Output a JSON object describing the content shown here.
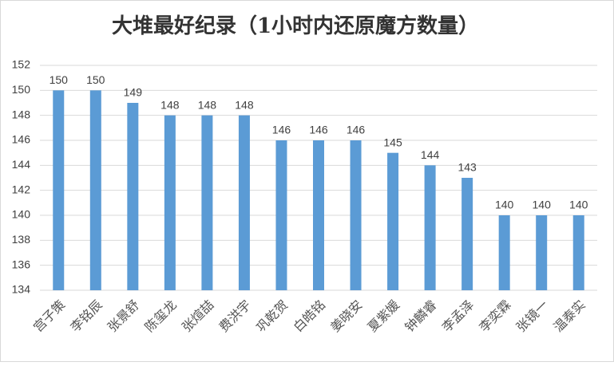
{
  "chart_data": {
    "type": "bar",
    "title": "大堆最好纪录（1小时内还原魔方数量）",
    "categories": [
      "宫子策",
      "李铭辰",
      "张景舒",
      "陈玺龙",
      "张煊喆",
      "费洪宇",
      "巩乾贺",
      "白皓铭",
      "姜晓安",
      "夏紫媛",
      "钟麟睿",
      "李孟泽",
      "李奕霖",
      "张镜一",
      "温泰实"
    ],
    "values": [
      150,
      150,
      149,
      148,
      148,
      148,
      146,
      146,
      146,
      145,
      144,
      143,
      140,
      140,
      140
    ],
    "color": "#5b9bd5",
    "ylim": [
      134,
      152
    ],
    "yticks": [
      134,
      136,
      138,
      140,
      142,
      144,
      146,
      148,
      150,
      152
    ],
    "grid": true
  }
}
